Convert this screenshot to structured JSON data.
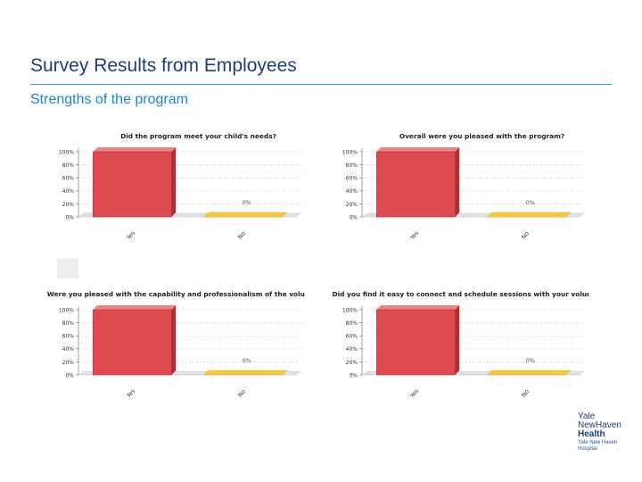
{
  "header": {
    "title": "Survey Results from Employees",
    "subtitle": "Strengths of the program"
  },
  "logo": {
    "line1": "Yale",
    "line2": "NewHaven",
    "line3": "Health",
    "line4": "Yale New Haven",
    "line5": "Hospital"
  },
  "colors": {
    "yes_bar": "#dd4a4f",
    "no_bar": "#f5c842",
    "accent_rule": "#2aa5c5"
  },
  "chart_data": [
    {
      "type": "bar",
      "title": "Did the program meet your child's needs?",
      "categories": [
        "Yes",
        "No"
      ],
      "values": [
        100,
        0
      ],
      "data_labels": [
        "",
        "0%"
      ],
      "yticks": [
        "0%",
        "20%",
        "40%",
        "60%",
        "80%",
        "100%"
      ],
      "ylim": [
        0,
        100
      ]
    },
    {
      "type": "bar",
      "title": "Overall were you pleased with the program?",
      "categories": [
        "Yes",
        "No"
      ],
      "values": [
        100,
        0
      ],
      "data_labels": [
        "",
        "0%"
      ],
      "yticks": [
        "0%",
        "20%",
        "40%",
        "60%",
        "80%",
        "100%"
      ],
      "ylim": [
        0,
        100
      ]
    },
    {
      "type": "bar",
      "title": "Were you pleased with the capability and professionalism of the volunteer tutor?",
      "categories": [
        "Yes",
        "No"
      ],
      "values": [
        100,
        0
      ],
      "data_labels": [
        "",
        "0%"
      ],
      "yticks": [
        "0%",
        "20%",
        "40%",
        "60%",
        "80%",
        "100%"
      ],
      "ylim": [
        0,
        100
      ]
    },
    {
      "type": "bar",
      "title": "Did you find it easy to connect and schedule sessions with your volunteer tutor?",
      "categories": [
        "Yes",
        "No"
      ],
      "values": [
        100,
        0
      ],
      "data_labels": [
        "",
        "0%"
      ],
      "yticks": [
        "0%",
        "20%",
        "40%",
        "60%",
        "80%",
        "100%"
      ],
      "ylim": [
        0,
        100
      ]
    }
  ]
}
